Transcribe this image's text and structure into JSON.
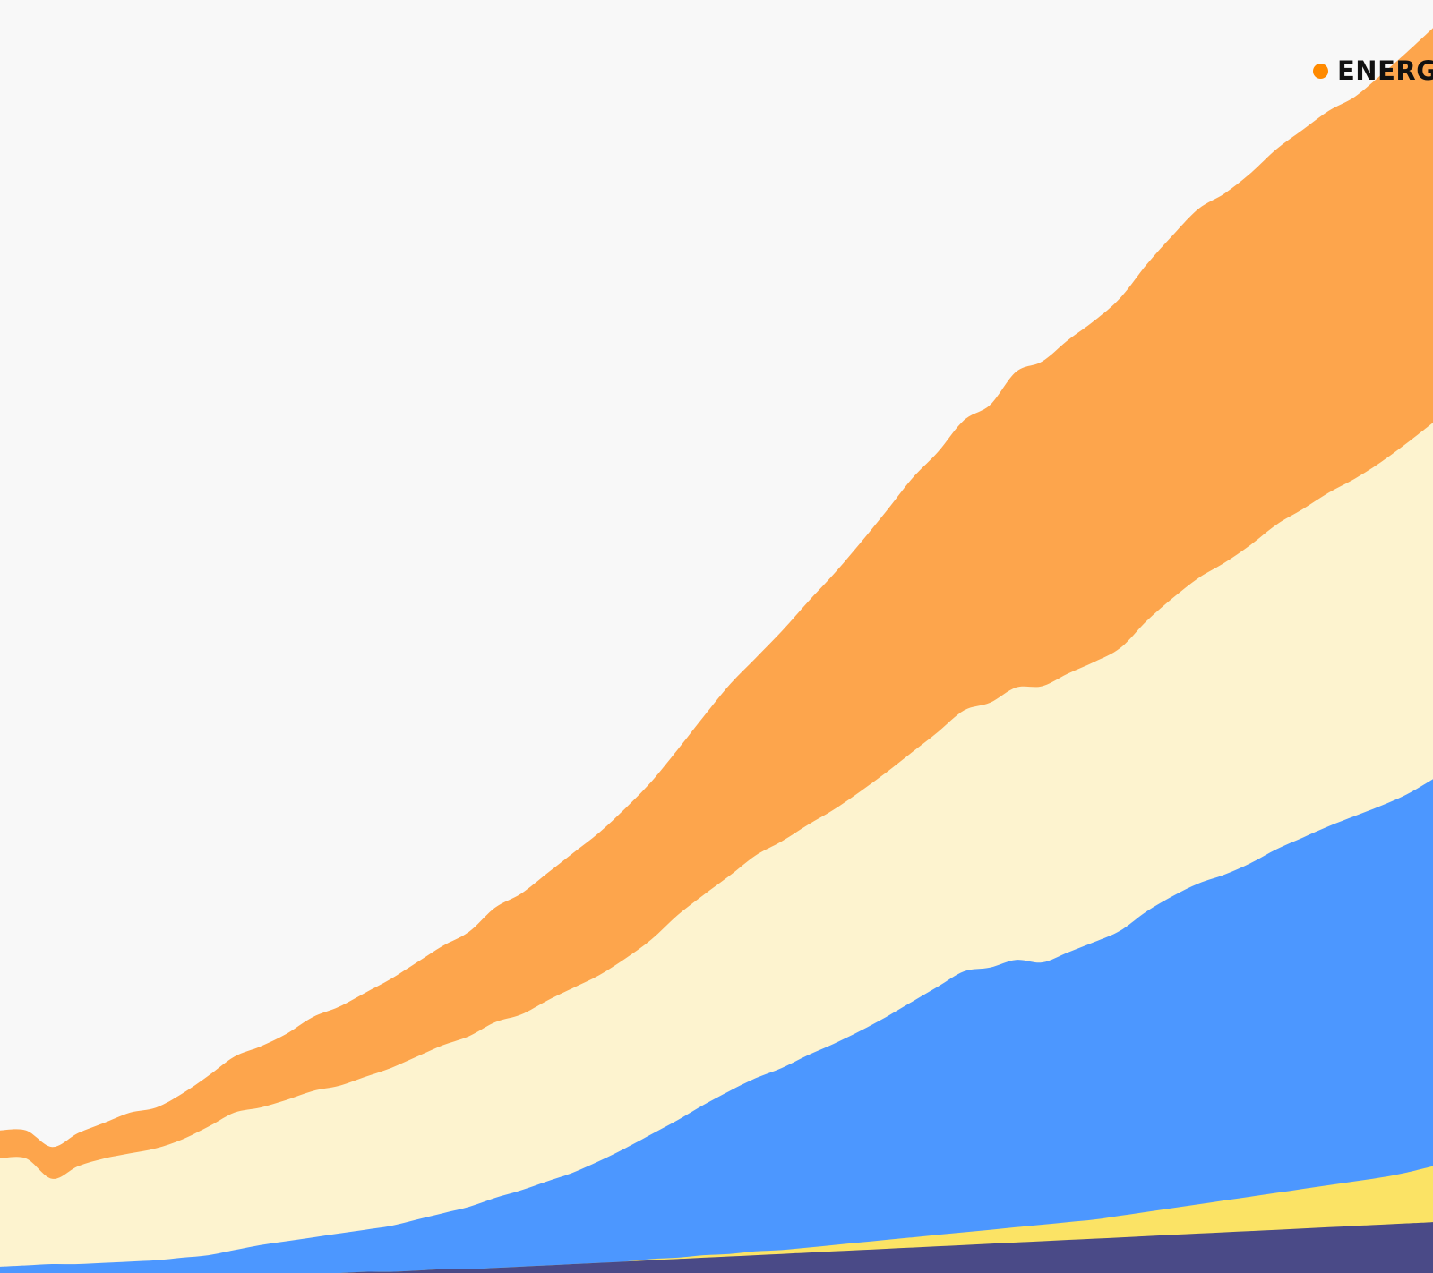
{
  "page": {
    "background": "#f8f8f8"
  },
  "legend": {
    "label": "ENERG",
    "dot_color": "#ff8a00"
  },
  "chart_data": {
    "type": "area",
    "stacked": true,
    "title": "",
    "xlabel": "",
    "ylabel": "",
    "grid": false,
    "legend_position": "top-right",
    "x": [
      0,
      1,
      2,
      3,
      4,
      5,
      6,
      7,
      8,
      9,
      10,
      11,
      12,
      13,
      14,
      15,
      16,
      17,
      18,
      19,
      20,
      21,
      22,
      23,
      24,
      25,
      26,
      27,
      28,
      29,
      30,
      31,
      32,
      33,
      34,
      35,
      36,
      37,
      38,
      39,
      40,
      41,
      42,
      43,
      44,
      45,
      46,
      47,
      48,
      49,
      50,
      51,
      52,
      53,
      54,
      55
    ],
    "ylim": [
      0,
      1000
    ],
    "series": [
      {
        "color": "#4a4a87",
        "values": [
          0,
          0,
          0,
          0,
          0,
          0,
          0,
          0,
          0,
          0,
          0,
          0,
          0,
          0,
          1,
          1,
          2,
          3,
          3,
          4,
          5,
          6,
          7,
          8,
          9,
          10,
          11,
          12,
          13,
          14,
          15,
          16,
          17,
          18,
          19,
          20,
          21,
          22,
          23,
          24,
          25,
          26,
          27,
          28,
          29,
          30,
          31,
          32,
          33,
          34,
          35,
          36,
          37,
          38,
          39,
          40
        ]
      },
      {
        "color": "#fbe365",
        "values": [
          0,
          0,
          0,
          0,
          0,
          0,
          0,
          0,
          0,
          0,
          0,
          0,
          0,
          0,
          0,
          0,
          0,
          0,
          0,
          0,
          0,
          0,
          0,
          0,
          0,
          1,
          1,
          2,
          2,
          3,
          3,
          4,
          5,
          6,
          7,
          8,
          9,
          10,
          11,
          12,
          13,
          14,
          15,
          17,
          19,
          21,
          23,
          25,
          27,
          29,
          31,
          33,
          35,
          37,
          40,
          44
        ]
      },
      {
        "color": "#4c97ff",
        "values": [
          5,
          6,
          7,
          7,
          8,
          9,
          10,
          12,
          14,
          18,
          22,
          25,
          28,
          31,
          33,
          36,
          40,
          44,
          49,
          55,
          60,
          66,
          72,
          80,
          89,
          98,
          108,
          118,
          128,
          136,
          143,
          151,
          158,
          166,
          175,
          185,
          195,
          205,
          206,
          210,
          206,
          212,
          218,
          224,
          236,
          245,
          252,
          256,
          262,
          270,
          276,
          282,
          287,
          292,
          297,
          304
        ]
      },
      {
        "color": "#fdf3cf",
        "values": [
          85,
          84,
          67,
          77,
          82,
          85,
          88,
          93,
          101,
          108,
          108,
          111,
          115,
          116,
          120,
          124,
          128,
          132,
          134,
          138,
          138,
          142,
          145,
          146,
          149,
          153,
          161,
          165,
          169,
          175,
          178,
          181,
          184,
          188,
          192,
          196,
          200,
          205,
          208,
          214,
          217,
          219,
          220,
          222,
          228,
          234,
          240,
          245,
          250,
          255,
          258,
          262,
          265,
          270,
          276,
          280
        ]
      },
      {
        "color": "#fda54c",
        "values": [
          22,
          22,
          25,
          26,
          28,
          32,
          32,
          36,
          40,
          44,
          48,
          52,
          58,
          62,
          66,
          70,
          74,
          78,
          82,
          90,
          95,
          100,
          106,
          112,
          118,
          124,
          130,
          140,
          150,
          155,
          165,
          175,
          185,
          195,
          205,
          215,
          220,
          228,
          234,
          248,
          255,
          262,
          268,
          275,
          280,
          285,
          290,
          290,
          292,
          295,
          298,
          300,
          300,
          304,
          307,
          310
        ]
      }
    ]
  }
}
